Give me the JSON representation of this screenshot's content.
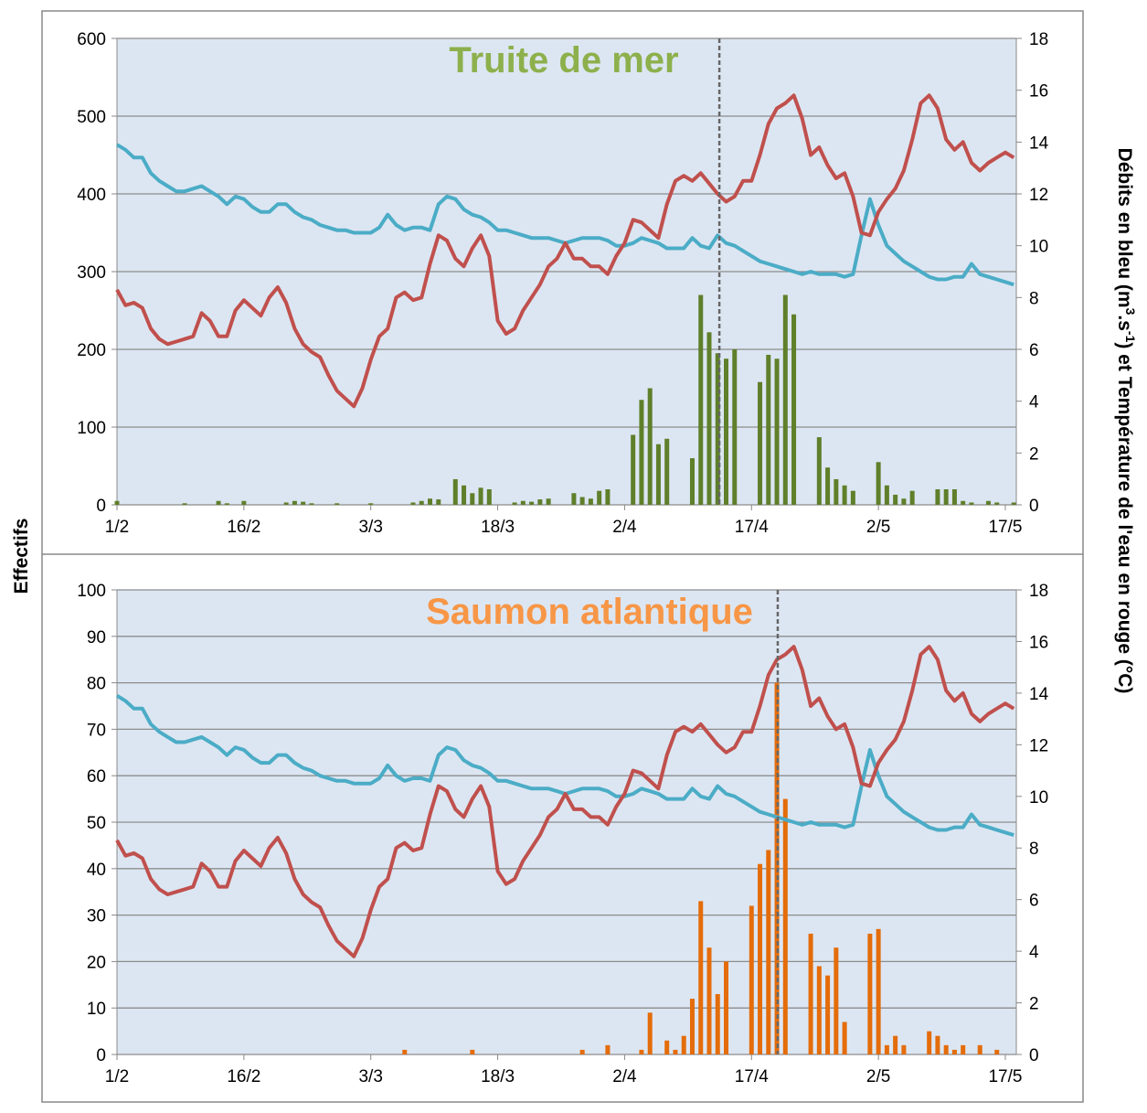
{
  "y_label": "Effectifs",
  "y2_label": [
    {
      "text": "Débits en bleu (m"
    },
    {
      "text": "3",
      "sup": true
    },
    {
      "text": ".s"
    },
    {
      "text": "-1",
      "sup": true
    },
    {
      "text": ") et Température de l'eau en rouge (°C)"
    }
  ],
  "chart_data": [
    {
      "type": "combo",
      "title": "Truite de mer",
      "title_color": "#8db04c",
      "vline": 71.2,
      "categories": [
        "1/2",
        null,
        null,
        null,
        null,
        null,
        null,
        null,
        null,
        null,
        null,
        null,
        null,
        null,
        null,
        "16/2",
        null,
        null,
        null,
        null,
        null,
        null,
        null,
        null,
        null,
        null,
        null,
        null,
        null,
        null,
        "3/3",
        null,
        null,
        null,
        null,
        null,
        null,
        null,
        null,
        null,
        null,
        null,
        null,
        null,
        null,
        "18/3",
        null,
        null,
        null,
        null,
        null,
        null,
        null,
        null,
        null,
        null,
        null,
        null,
        null,
        null,
        "2/4",
        null,
        null,
        null,
        null,
        null,
        null,
        null,
        null,
        null,
        null,
        null,
        null,
        null,
        null,
        "17/4",
        null,
        null,
        null,
        null,
        null,
        null,
        null,
        null,
        null,
        null,
        null,
        null,
        null,
        null,
        "2/5",
        null,
        null,
        null,
        null,
        null,
        null,
        null,
        null,
        null,
        null,
        null,
        null,
        null,
        null,
        "17/5",
        null
      ],
      "ylim": [
        0,
        600
      ],
      "yticks": [
        0,
        100,
        200,
        300,
        400,
        500,
        600
      ],
      "y2lim": [
        0,
        18
      ],
      "y2ticks": [
        0,
        2,
        4,
        6,
        8,
        10,
        12,
        14,
        16,
        18
      ],
      "grid": true,
      "series": [
        {
          "type": "bar",
          "color": "#5f7f2a",
          "values": [
            5,
            0,
            0,
            0,
            0,
            0,
            0,
            0,
            2,
            0,
            0,
            0,
            5,
            2,
            0,
            5,
            0,
            0,
            0,
            0,
            3,
            5,
            4,
            2,
            0,
            0,
            2,
            0,
            0,
            0,
            2,
            0,
            0,
            0,
            0,
            3,
            5,
            8,
            7,
            0,
            33,
            25,
            15,
            22,
            20,
            0,
            0,
            3,
            5,
            4,
            7,
            8,
            0,
            0,
            15,
            10,
            8,
            18,
            20,
            0,
            0,
            90,
            135,
            150,
            78,
            85,
            0,
            0,
            60,
            270,
            222,
            195,
            188,
            200,
            0,
            0,
            158,
            193,
            188,
            270,
            245,
            0,
            0,
            87,
            48,
            33,
            25,
            18,
            0,
            0,
            55,
            25,
            13,
            8,
            18,
            0,
            0,
            20,
            20,
            20,
            5,
            3,
            0,
            5,
            3,
            0,
            3
          ]
        },
        {
          "type": "line",
          "axis": "y2",
          "color": "#4bacc6",
          "values": [
            13.9,
            13.7,
            13.4,
            13.4,
            12.8,
            12.5,
            12.3,
            12.1,
            12.1,
            12.2,
            12.3,
            12.1,
            11.9,
            11.6,
            11.9,
            11.8,
            11.5,
            11.3,
            11.3,
            11.6,
            11.6,
            11.3,
            11.1,
            11.0,
            10.8,
            10.7,
            10.6,
            10.6,
            10.5,
            10.5,
            10.5,
            10.7,
            11.2,
            10.8,
            10.6,
            10.7,
            10.7,
            10.6,
            11.6,
            11.9,
            11.8,
            11.4,
            11.2,
            11.1,
            10.9,
            10.6,
            10.6,
            10.5,
            10.4,
            10.3,
            10.3,
            10.3,
            10.2,
            10.1,
            10.2,
            10.3,
            10.3,
            10.3,
            10.2,
            10.0,
            10.0,
            10.1,
            10.3,
            10.2,
            10.1,
            9.9,
            9.9,
            9.9,
            10.3,
            10.0,
            9.9,
            10.4,
            10.1,
            10.0,
            9.8,
            9.6,
            9.4,
            9.3,
            9.2,
            9.1,
            9.0,
            8.9,
            9.0,
            8.9,
            8.9,
            8.9,
            8.8,
            8.9,
            10.4,
            11.8,
            10.8,
            10.0,
            9.7,
            9.4,
            9.2,
            9.0,
            8.8,
            8.7,
            8.7,
            8.8,
            8.8,
            9.3,
            8.9,
            8.8,
            8.7,
            8.6,
            8.5
          ]
        },
        {
          "type": "line",
          "axis": "y2",
          "color": "#c0504d",
          "values": [
            8.3,
            7.7,
            7.8,
            7.6,
            6.8,
            6.4,
            6.2,
            6.3,
            6.4,
            6.5,
            7.4,
            7.1,
            6.5,
            6.5,
            7.5,
            7.9,
            7.6,
            7.3,
            8.0,
            8.4,
            7.8,
            6.8,
            6.2,
            5.9,
            5.7,
            5.0,
            4.4,
            4.1,
            3.8,
            4.5,
            5.6,
            6.5,
            6.8,
            8.0,
            8.2,
            7.9,
            8.0,
            9.3,
            10.4,
            10.2,
            9.5,
            9.2,
            9.9,
            10.4,
            9.6,
            7.1,
            6.6,
            6.8,
            7.5,
            8.0,
            8.5,
            9.2,
            9.5,
            10.1,
            9.5,
            9.5,
            9.2,
            9.2,
            8.9,
            9.6,
            10.1,
            11.0,
            10.9,
            10.6,
            10.3,
            11.6,
            12.5,
            12.7,
            12.5,
            12.8,
            12.4,
            12.0,
            11.7,
            11.9,
            12.5,
            12.5,
            13.5,
            14.7,
            15.3,
            15.5,
            15.8,
            14.9,
            13.5,
            13.8,
            13.1,
            12.6,
            12.8,
            11.9,
            10.5,
            10.4,
            11.3,
            11.8,
            12.2,
            12.9,
            14.1,
            15.5,
            15.8,
            15.3,
            14.1,
            13.7,
            14.0,
            13.2,
            12.9,
            13.2,
            13.4,
            13.6,
            13.4
          ]
        }
      ]
    },
    {
      "type": "combo",
      "title": "Saumon atlantique",
      "title_color": "#f79646",
      "vline": 78.1,
      "categories": [
        "1/2",
        null,
        null,
        null,
        null,
        null,
        null,
        null,
        null,
        null,
        null,
        null,
        null,
        null,
        null,
        "16/2",
        null,
        null,
        null,
        null,
        null,
        null,
        null,
        null,
        null,
        null,
        null,
        null,
        null,
        null,
        "3/3",
        null,
        null,
        null,
        null,
        null,
        null,
        null,
        null,
        null,
        null,
        null,
        null,
        null,
        null,
        "18/3",
        null,
        null,
        null,
        null,
        null,
        null,
        null,
        null,
        null,
        null,
        null,
        null,
        null,
        null,
        "2/4",
        null,
        null,
        null,
        null,
        null,
        null,
        null,
        null,
        null,
        null,
        null,
        null,
        null,
        null,
        "17/4",
        null,
        null,
        null,
        null,
        null,
        null,
        null,
        null,
        null,
        null,
        null,
        null,
        null,
        null,
        "2/5",
        null,
        null,
        null,
        null,
        null,
        null,
        null,
        null,
        null,
        null,
        null,
        null,
        null,
        null,
        "17/5",
        null
      ],
      "ylim": [
        0,
        100
      ],
      "yticks": [
        0,
        10,
        20,
        30,
        40,
        50,
        60,
        70,
        80,
        90,
        100
      ],
      "y2lim": [
        0,
        18
      ],
      "y2ticks": [
        0,
        2,
        4,
        6,
        8,
        10,
        12,
        14,
        16,
        18
      ],
      "grid": true,
      "series": [
        {
          "type": "bar",
          "color": "#e46c0a",
          "values": [
            0,
            0,
            0,
            0,
            0,
            0,
            0,
            0,
            0,
            0,
            0,
            0,
            0,
            0,
            0,
            0,
            0,
            0,
            0,
            0,
            0,
            0,
            0,
            0,
            0,
            0,
            0,
            0,
            0,
            0,
            0,
            0,
            0,
            0,
            1,
            0,
            0,
            0,
            0,
            0,
            0,
            0,
            1,
            0,
            0,
            0,
            0,
            0,
            0,
            0,
            0,
            0,
            0,
            0,
            0,
            1,
            0,
            0,
            2,
            0,
            0,
            0,
            1,
            9,
            0,
            3,
            1,
            4,
            12,
            33,
            23,
            13,
            20,
            0,
            0,
            32,
            41,
            44,
            80,
            55,
            0,
            0,
            26,
            19,
            17,
            23,
            7,
            0,
            0,
            26,
            27,
            2,
            4,
            2,
            0,
            0,
            5,
            4,
            2,
            1,
            2,
            0,
            2,
            0,
            1,
            0,
            0
          ]
        },
        {
          "type": "line",
          "axis": "y2",
          "color": "#4bacc6",
          "values": [
            13.9,
            13.7,
            13.4,
            13.4,
            12.8,
            12.5,
            12.3,
            12.1,
            12.1,
            12.2,
            12.3,
            12.1,
            11.9,
            11.6,
            11.9,
            11.8,
            11.5,
            11.3,
            11.3,
            11.6,
            11.6,
            11.3,
            11.1,
            11.0,
            10.8,
            10.7,
            10.6,
            10.6,
            10.5,
            10.5,
            10.5,
            10.7,
            11.2,
            10.8,
            10.6,
            10.7,
            10.7,
            10.6,
            11.6,
            11.9,
            11.8,
            11.4,
            11.2,
            11.1,
            10.9,
            10.6,
            10.6,
            10.5,
            10.4,
            10.3,
            10.3,
            10.3,
            10.2,
            10.1,
            10.2,
            10.3,
            10.3,
            10.3,
            10.2,
            10.0,
            10.0,
            10.1,
            10.3,
            10.2,
            10.1,
            9.9,
            9.9,
            9.9,
            10.3,
            10.0,
            9.9,
            10.4,
            10.1,
            10.0,
            9.8,
            9.6,
            9.4,
            9.3,
            9.2,
            9.1,
            9.0,
            8.9,
            9.0,
            8.9,
            8.9,
            8.9,
            8.8,
            8.9,
            10.4,
            11.8,
            10.8,
            10.0,
            9.7,
            9.4,
            9.2,
            9.0,
            8.8,
            8.7,
            8.7,
            8.8,
            8.8,
            9.3,
            8.9,
            8.8,
            8.7,
            8.6,
            8.5
          ]
        },
        {
          "type": "line",
          "axis": "y2",
          "color": "#c0504d",
          "values": [
            8.3,
            7.7,
            7.8,
            7.6,
            6.8,
            6.4,
            6.2,
            6.3,
            6.4,
            6.5,
            7.4,
            7.1,
            6.5,
            6.5,
            7.5,
            7.9,
            7.6,
            7.3,
            8.0,
            8.4,
            7.8,
            6.8,
            6.2,
            5.9,
            5.7,
            5.0,
            4.4,
            4.1,
            3.8,
            4.5,
            5.6,
            6.5,
            6.8,
            8.0,
            8.2,
            7.9,
            8.0,
            9.3,
            10.4,
            10.2,
            9.5,
            9.2,
            9.9,
            10.4,
            9.6,
            7.1,
            6.6,
            6.8,
            7.5,
            8.0,
            8.5,
            9.2,
            9.5,
            10.1,
            9.5,
            9.5,
            9.2,
            9.2,
            8.9,
            9.6,
            10.1,
            11.0,
            10.9,
            10.6,
            10.3,
            11.6,
            12.5,
            12.7,
            12.5,
            12.8,
            12.4,
            12.0,
            11.7,
            11.9,
            12.5,
            12.5,
            13.5,
            14.7,
            15.3,
            15.5,
            15.8,
            14.9,
            13.5,
            13.8,
            13.1,
            12.6,
            12.8,
            11.9,
            10.5,
            10.4,
            11.3,
            11.8,
            12.2,
            12.9,
            14.1,
            15.5,
            15.8,
            15.3,
            14.1,
            13.7,
            14.0,
            13.2,
            12.9,
            13.2,
            13.4,
            13.6,
            13.4
          ]
        }
      ]
    }
  ]
}
